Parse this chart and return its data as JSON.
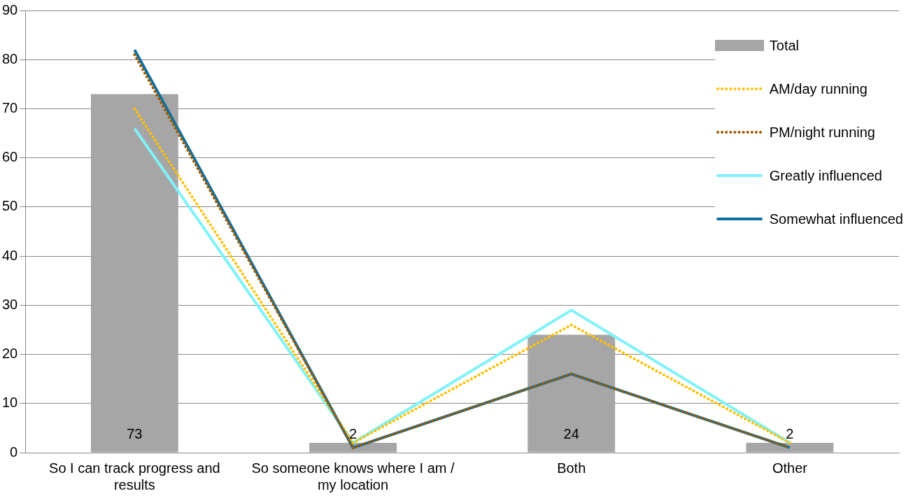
{
  "chart_data": {
    "type": "bar",
    "categories": [
      "So I can track progress and results",
      "So someone knows where I am / my location",
      "Both",
      "Other"
    ],
    "series": [
      {
        "name": "Total",
        "color": "#a6a6a6",
        "values": [
          73,
          2,
          24,
          2
        ],
        "value_labels": [
          "73",
          "2",
          "24",
          "2"
        ]
      },
      {
        "name": "AM/day running",
        "type": "line",
        "color": "#ffc000",
        "line_style": "dotted",
        "values": [
          70,
          2,
          26,
          2
        ]
      },
      {
        "name": "PM/night running",
        "type": "line",
        "color": "#9c5a00",
        "line_style": "dotted",
        "values": [
          81,
          1,
          16,
          1
        ]
      },
      {
        "name": "Greatly influenced",
        "type": "line",
        "color": "#7ff2fa",
        "line_style": "solid",
        "values": [
          66,
          2,
          29,
          2
        ]
      },
      {
        "name": "Somewhat influenced",
        "type": "line",
        "color": "#0f6fa0",
        "line_style": "solid",
        "values": [
          82,
          1,
          16,
          1
        ]
      }
    ],
    "ylim": [
      0,
      90
    ],
    "yticks": [
      0,
      10,
      20,
      30,
      40,
      50,
      60,
      70,
      80,
      90
    ],
    "grid": "y",
    "legend": "top right",
    "marker": "none"
  }
}
